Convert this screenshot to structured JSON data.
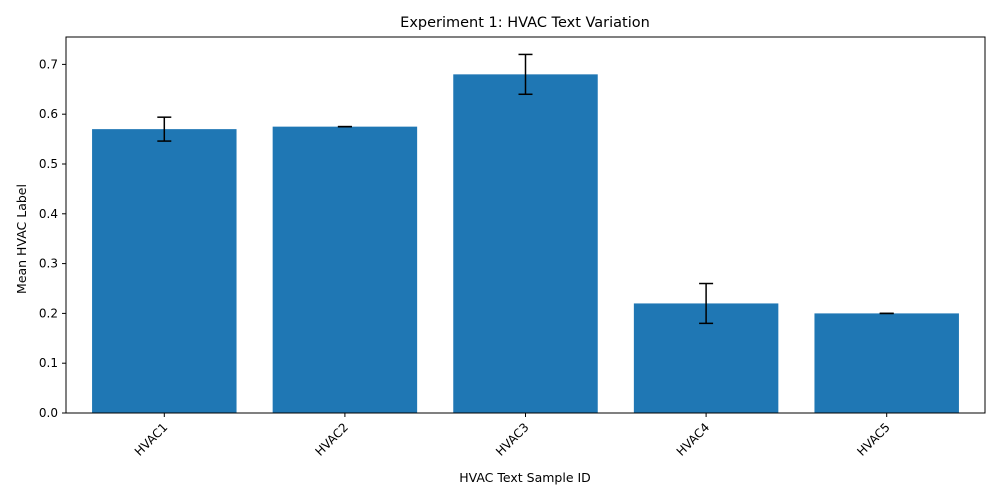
{
  "chart_data": {
    "type": "bar",
    "title": "Experiment 1: HVAC Text Variation",
    "xlabel": "HVAC Text Sample ID",
    "ylabel": "Mean HVAC Label",
    "categories": [
      "HVAC1",
      "HVAC2",
      "HVAC3",
      "HVAC4",
      "HVAC5"
    ],
    "values": [
      0.57,
      0.575,
      0.68,
      0.22,
      0.2
    ],
    "errors": [
      0.024,
      0.0,
      0.04,
      0.04,
      0.0
    ],
    "ylim": [
      0,
      0.755
    ],
    "yticks": [
      "0.0",
      "0.1",
      "0.2",
      "0.3",
      "0.4",
      "0.5",
      "0.6",
      "0.7"
    ],
    "x_tick_rotation": 45,
    "bar_color": "#1f77b4",
    "grid": false,
    "legend": "none"
  }
}
